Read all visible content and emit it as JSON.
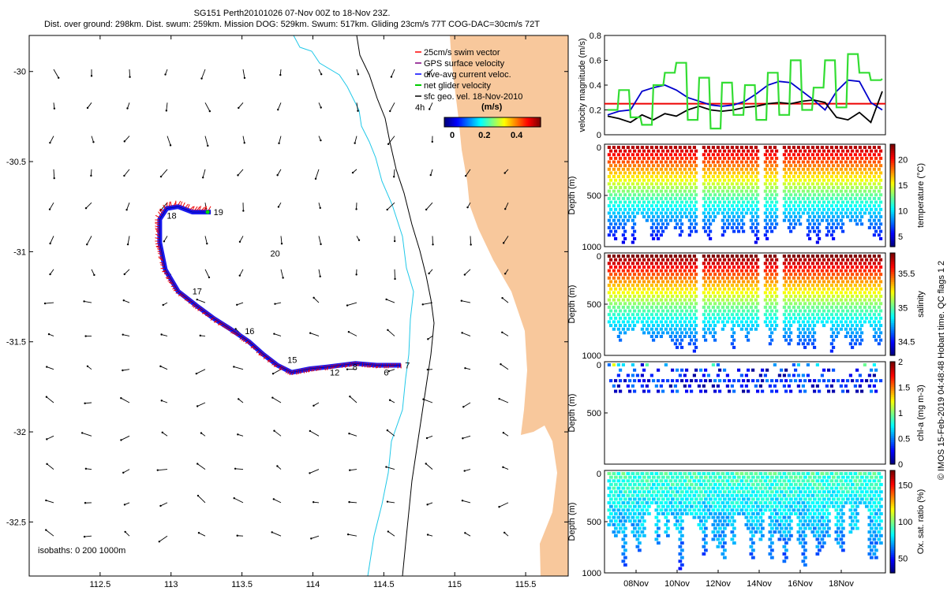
{
  "header": {
    "line1": "SG151 Perth20101026 07-Nov 00Z to 18-Nov 23Z.",
    "line2": "Dist. over ground: 298km. Dist. swum: 259km. Mission DOG: 529km. Swum: 517km. Gliding 23cm/s 77T COG-DAC=30cm/s 72T"
  },
  "chart_data": [
    {
      "type": "map",
      "name": "glider track map",
      "x_ticks": [
        "112.5",
        "113",
        "113.5",
        "114",
        "114.5",
        "115",
        "115.5"
      ],
      "x_tick_values": [
        112.5,
        113,
        113.5,
        114,
        114.5,
        115,
        115.5
      ],
      "y_ticks": [
        "-30",
        "-30.5",
        "-31",
        "-31.5",
        "-32",
        "-32.5"
      ],
      "y_tick_values": [
        -30,
        -30.5,
        -31,
        -31.5,
        -32,
        -32.5
      ],
      "xlim": [
        112,
        115.8
      ],
      "ylim": [
        -32.8,
        -29.8
      ],
      "legend": [
        {
          "label": "25cm/s swim vector",
          "color": "#ff0000"
        },
        {
          "label": "GPS surface velocity",
          "color": "#800080"
        },
        {
          "label": "dive-avg current veloc.",
          "color": "#0000ff"
        },
        {
          "label": "net glider velocity",
          "color": "#00cc00"
        },
        {
          "label": "sfc geo. vel. 18-Nov-2010",
          "color": "#000000"
        }
      ],
      "speed_colorbar": {
        "label": "(m/s)",
        "ticks": [
          "0",
          "0.2",
          "0.4"
        ],
        "tick_values": [
          0,
          0.2,
          0.4
        ],
        "range": [
          0,
          0.5
        ]
      },
      "annotation_4h": "4h",
      "isobaths_label": "isobaths: 0   200  1000m",
      "track": [
        [
          114.62,
          -31.63
        ],
        [
          114.45,
          -31.63
        ],
        [
          114.3,
          -31.62
        ],
        [
          114.1,
          -31.64
        ],
        [
          113.98,
          -31.65
        ],
        [
          113.85,
          -31.67
        ],
        [
          113.75,
          -31.63
        ],
        [
          113.65,
          -31.57
        ],
        [
          113.55,
          -31.5
        ],
        [
          113.42,
          -31.43
        ],
        [
          113.3,
          -31.37
        ],
        [
          113.18,
          -31.3
        ],
        [
          113.05,
          -31.22
        ],
        [
          112.96,
          -31.1
        ],
        [
          112.92,
          -30.95
        ],
        [
          112.92,
          -30.82
        ],
        [
          112.97,
          -30.76
        ],
        [
          113.05,
          -30.75
        ],
        [
          113.15,
          -30.78
        ],
        [
          113.28,
          -30.78
        ]
      ],
      "day_labels": [
        {
          "text": "18",
          "lon": 112.97,
          "lat": -30.8
        },
        {
          "text": "19",
          "lon": 113.3,
          "lat": -30.78
        },
        {
          "text": "20",
          "lon": 113.7,
          "lat": -31.01
        },
        {
          "text": "17",
          "lon": 113.15,
          "lat": -31.22
        },
        {
          "text": "16",
          "lon": 113.52,
          "lat": -31.44
        },
        {
          "text": "15",
          "lon": 113.82,
          "lat": -31.6
        },
        {
          "text": "12",
          "lon": 114.12,
          "lat": -31.67
        },
        {
          "text": "8",
          "lon": 114.28,
          "lat": -31.64
        },
        {
          "text": "6",
          "lon": 114.5,
          "lat": -31.67
        },
        {
          "text": "7",
          "lon": 114.65,
          "lat": -31.63
        }
      ]
    },
    {
      "type": "line",
      "name": "velocity magnitude",
      "ylabel": "velocity magnitude (m/s)",
      "ylim": [
        0,
        0.8
      ],
      "y_ticks": [
        "0",
        "0.2",
        "0.4",
        "0.6",
        "0.8"
      ],
      "y_tick_values": [
        0,
        0.2,
        0.4,
        0.6,
        0.8
      ],
      "reference_line": 0.25,
      "series": [
        {
          "name": "dive-avg current",
          "color": "#0000cc",
          "values": [
            0.16,
            0.19,
            0.2,
            0.35,
            0.38,
            0.4,
            0.36,
            0.3,
            0.27,
            0.24,
            0.23,
            0.24,
            0.27,
            0.33,
            0.4,
            0.43,
            0.42,
            0.35,
            0.28,
            0.2,
            0.35,
            0.44,
            0.43,
            0.26,
            0.2
          ]
        },
        {
          "name": "surface geostrophic",
          "color": "#000000",
          "values": [
            0.15,
            0.13,
            0.1,
            0.16,
            0.12,
            0.17,
            0.15,
            0.2,
            0.23,
            0.2,
            0.19,
            0.2,
            0.22,
            0.23,
            0.25,
            0.26,
            0.25,
            0.27,
            0.28,
            0.26,
            0.14,
            0.12,
            0.18,
            0.1,
            0.35
          ]
        },
        {
          "name": "net glider velocity",
          "color": "#33dd33",
          "values": [
            0.2,
            0.36,
            0.14,
            0.08,
            0.4,
            0.5,
            0.58,
            0.12,
            0.46,
            0.05,
            0.42,
            0.16,
            0.4,
            0.12,
            0.5,
            0.16,
            0.6,
            0.2,
            0.38,
            0.6,
            0.22,
            0.65,
            0.5,
            0.44,
            0.45
          ]
        }
      ]
    },
    {
      "type": "heatmap",
      "name": "temperature section",
      "ylabel": "Depth (m)",
      "colorbar_label": "temperature (°C)",
      "colorbar_ticks": [
        "5",
        "10",
        "15",
        "20"
      ],
      "colorbar_range": [
        3,
        23
      ],
      "y_ticks": [
        "0",
        "500",
        "1000"
      ]
    },
    {
      "type": "heatmap",
      "name": "salinity section",
      "ylabel": "Depth (m)",
      "colorbar_label": "salinity",
      "colorbar_ticks": [
        "34.5",
        "35",
        "35.5"
      ],
      "colorbar_range": [
        34.3,
        35.8
      ],
      "y_ticks": [
        "0",
        "500",
        "1000"
      ]
    },
    {
      "type": "heatmap",
      "name": "chlorophyll section",
      "ylabel": "Depth (m)",
      "colorbar_label": "chl-a (mg m-3)",
      "colorbar_ticks": [
        "0",
        "0.5",
        "1",
        "1.5",
        "2"
      ],
      "colorbar_range": [
        0,
        2
      ],
      "y_ticks": [
        "0",
        "500"
      ]
    },
    {
      "type": "heatmap",
      "name": "oxygen saturation section",
      "ylabel": "Depth (m)",
      "colorbar_label": "Ox. sat. ratio (%)",
      "colorbar_ticks": [
        "50",
        "100",
        "150"
      ],
      "colorbar_range": [
        30,
        170
      ],
      "y_ticks": [
        "0",
        "500",
        "1000"
      ],
      "x_ticks": [
        "08Nov",
        "10Nov",
        "12Nov",
        "14Nov",
        "16Nov",
        "18Nov"
      ]
    }
  ],
  "credit": "© IMOS 15-Feb-2019 04:48:48 Hobart time. QC flags 1  2"
}
